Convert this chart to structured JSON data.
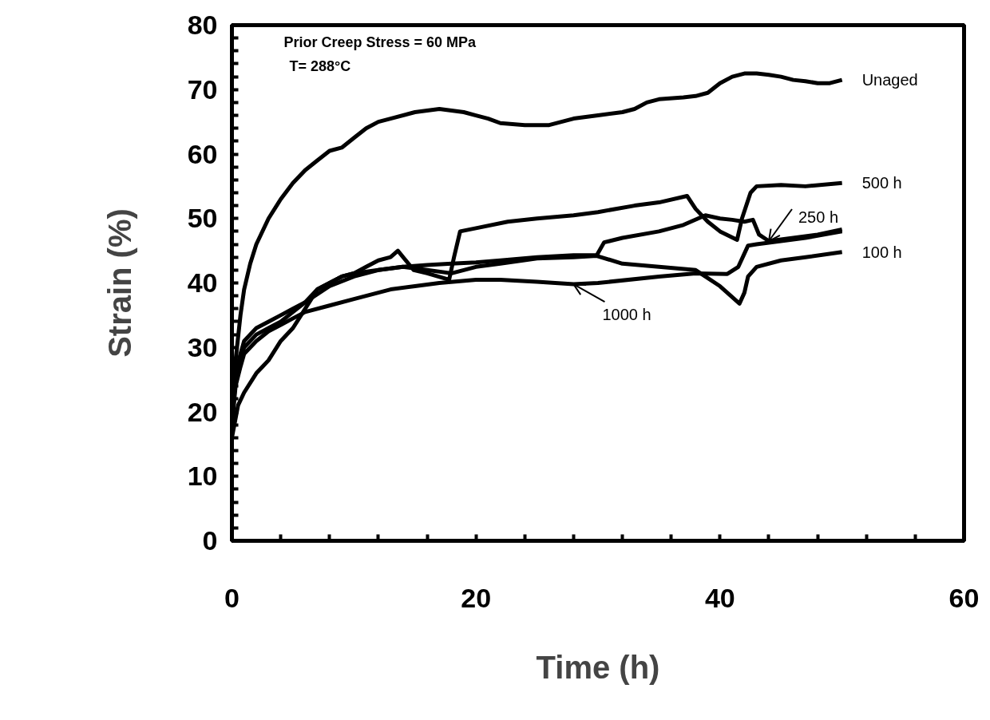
{
  "chart_data": {
    "type": "line",
    "xlabel": "Time (h)",
    "ylabel": "Strain (%)",
    "xlim": [
      0,
      60
    ],
    "ylim": [
      0,
      80
    ],
    "xticks": [
      0,
      {
        "value": 4,
        "label": null
      },
      {
        "value": 8,
        "label": null
      },
      {
        "value": 12,
        "label": null
      },
      {
        "value": 16,
        "label": null
      },
      20,
      {
        "value": 24,
        "label": null
      },
      {
        "value": 28,
        "label": null
      },
      {
        "value": 32,
        "label": null
      },
      {
        "value": 36,
        "label": null
      },
      40,
      {
        "value": 44,
        "label": null
      },
      {
        "value": 48,
        "label": null
      },
      {
        "value": 52,
        "label": null
      },
      {
        "value": 56,
        "label": null
      },
      60
    ],
    "yticks": [
      0,
      {
        "value": 2,
        "label": null
      },
      {
        "value": 4,
        "label": null
      },
      {
        "value": 6,
        "label": null
      },
      {
        "value": 8,
        "label": null
      },
      10,
      {
        "value": 12,
        "label": null
      },
      {
        "value": 14,
        "label": null
      },
      {
        "value": 16,
        "label": null
      },
      {
        "value": 18,
        "label": null
      },
      20,
      {
        "value": 22,
        "label": null
      },
      {
        "value": 24,
        "label": null
      },
      {
        "value": 26,
        "label": null
      },
      {
        "value": 28,
        "label": null
      },
      30,
      {
        "value": 32,
        "label": null
      },
      {
        "value": 34,
        "label": null
      },
      {
        "value": 36,
        "label": null
      },
      {
        "value": 38,
        "label": null
      },
      40,
      {
        "value": 42,
        "label": null
      },
      {
        "value": 44,
        "label": null
      },
      {
        "value": 46,
        "label": null
      },
      {
        "value": 48,
        "label": null
      },
      50,
      {
        "value": 52,
        "label": null
      },
      {
        "value": 54,
        "label": null
      },
      {
        "value": 56,
        "label": null
      },
      {
        "value": 58,
        "label": null
      },
      60,
      {
        "value": 62,
        "label": null
      },
      {
        "value": 64,
        "label": null
      },
      {
        "value": 66,
        "label": null
      },
      {
        "value": 68,
        "label": null
      },
      70,
      {
        "value": 72,
        "label": null
      },
      {
        "value": 74,
        "label": null
      },
      {
        "value": 76,
        "label": null
      },
      {
        "value": 78,
        "label": null
      },
      80
    ],
    "grid": false,
    "marker": "none",
    "line_style": "solid",
    "series": [
      {
        "name": "Unaged",
        "color": "#000000",
        "x": [
          0,
          0.3,
          0.7,
          1,
          1.5,
          2,
          3,
          4,
          5,
          6,
          7,
          8,
          9,
          10,
          11,
          12,
          13,
          15,
          17,
          19,
          20,
          21,
          22,
          24,
          26,
          28,
          30,
          32,
          33,
          34,
          35,
          37,
          38,
          39,
          40,
          41,
          42,
          43,
          44,
          45,
          46,
          47,
          48,
          49,
          50
        ],
        "values": [
          18,
          28,
          35,
          39,
          43,
          46,
          50,
          53,
          55.5,
          57.5,
          59,
          60.5,
          61,
          62.5,
          64,
          65,
          65.5,
          66.5,
          67,
          66.5,
          66,
          65.5,
          64.8,
          64.5,
          64.5,
          65.5,
          66,
          66.5,
          67,
          68,
          68.5,
          68.8,
          69,
          69.5,
          71,
          72,
          72.5,
          72.5,
          72.3,
          72,
          71.5,
          71.3,
          71,
          71,
          71.5
        ]
      },
      {
        "name": "500 h",
        "color": "#000000",
        "x": [
          0,
          0.5,
          1,
          2,
          2.5,
          3,
          4,
          5,
          6,
          7,
          8,
          9,
          10,
          11,
          12,
          13,
          13.6,
          14.9,
          16,
          17.8,
          18.2,
          18.7,
          20,
          22.6,
          25,
          28,
          30,
          33,
          35,
          37.3,
          38,
          39,
          40,
          41.4,
          41.8,
          42.5,
          43,
          45,
          47,
          50
        ],
        "values": [
          16,
          21,
          23,
          26,
          27,
          28,
          31,
          33,
          36,
          39,
          40,
          41,
          41.5,
          42.5,
          43.5,
          44,
          45,
          42,
          41.5,
          40.5,
          44,
          48,
          48.5,
          49.5,
          50,
          50.5,
          51,
          52,
          52.5,
          53.5,
          51.5,
          49.5,
          48,
          46.7,
          50,
          54,
          55,
          55.2,
          55,
          55.5
        ]
      },
      {
        "color": "#000000",
        "x": [
          0,
          0.3,
          0.7,
          1,
          2,
          3,
          4,
          5,
          6,
          7,
          8,
          9,
          10,
          12,
          14,
          16,
          18,
          20,
          22,
          25,
          28,
          29.9,
          30.5,
          32,
          35,
          37,
          38.8,
          40,
          41,
          42,
          42.7,
          43.2,
          44,
          46,
          48,
          50
        ],
        "values": [
          18,
          25,
          28,
          30,
          32,
          33,
          34,
          35.5,
          37,
          39,
          40,
          41,
          41.5,
          42,
          42.5,
          42.8,
          43,
          43.2,
          43.5,
          44,
          44.3,
          44.3,
          46.3,
          47,
          48,
          49,
          50.5,
          50,
          49.8,
          49.5,
          49.8,
          47.5,
          46.5,
          47,
          47.5,
          48.3
        ]
      },
      {
        "name": "100 h",
        "color": "#000000",
        "x": [
          0,
          0.3,
          0.7,
          1,
          2,
          3,
          4,
          5,
          6,
          8,
          10,
          12,
          14,
          16,
          18,
          20,
          22,
          25,
          28,
          29.9,
          32,
          35,
          38,
          38.8,
          40,
          41.6,
          42,
          42.3,
          43,
          45,
          47,
          50
        ],
        "values": [
          18,
          26,
          29,
          31,
          33,
          34,
          35,
          36,
          37,
          39.5,
          41,
          42,
          42.5,
          42,
          41.5,
          42.5,
          43,
          43.8,
          44,
          44.2,
          43,
          42.5,
          42,
          41,
          39.5,
          36.8,
          38.5,
          41,
          42.5,
          43.5,
          44,
          44.8
        ]
      },
      {
        "color": "#000000",
        "x": [
          0,
          0.3,
          0.7,
          1,
          2,
          3,
          4,
          5,
          6,
          8,
          10,
          13,
          15,
          17,
          20,
          22,
          25,
          28,
          30,
          35,
          38,
          40.6,
          41.5,
          42.3,
          43,
          45,
          47,
          50
        ],
        "values": [
          18,
          24,
          27,
          29,
          31,
          32.5,
          33.5,
          34.5,
          35.5,
          36.5,
          37.5,
          39,
          39.5,
          40,
          40.5,
          40.5,
          40.2,
          39.8,
          40,
          41,
          41.5,
          41.4,
          42.5,
          45.8,
          46,
          46.5,
          47,
          48
        ]
      }
    ],
    "annotations": [
      "Prior Creep Stress = 60 MPa",
      "T= 288°C",
      {
        "text": "250 h",
        "x": 44,
        "y": 46.5
      },
      {
        "text": "1000 h",
        "x": 28,
        "y": 39.8
      }
    ]
  }
}
